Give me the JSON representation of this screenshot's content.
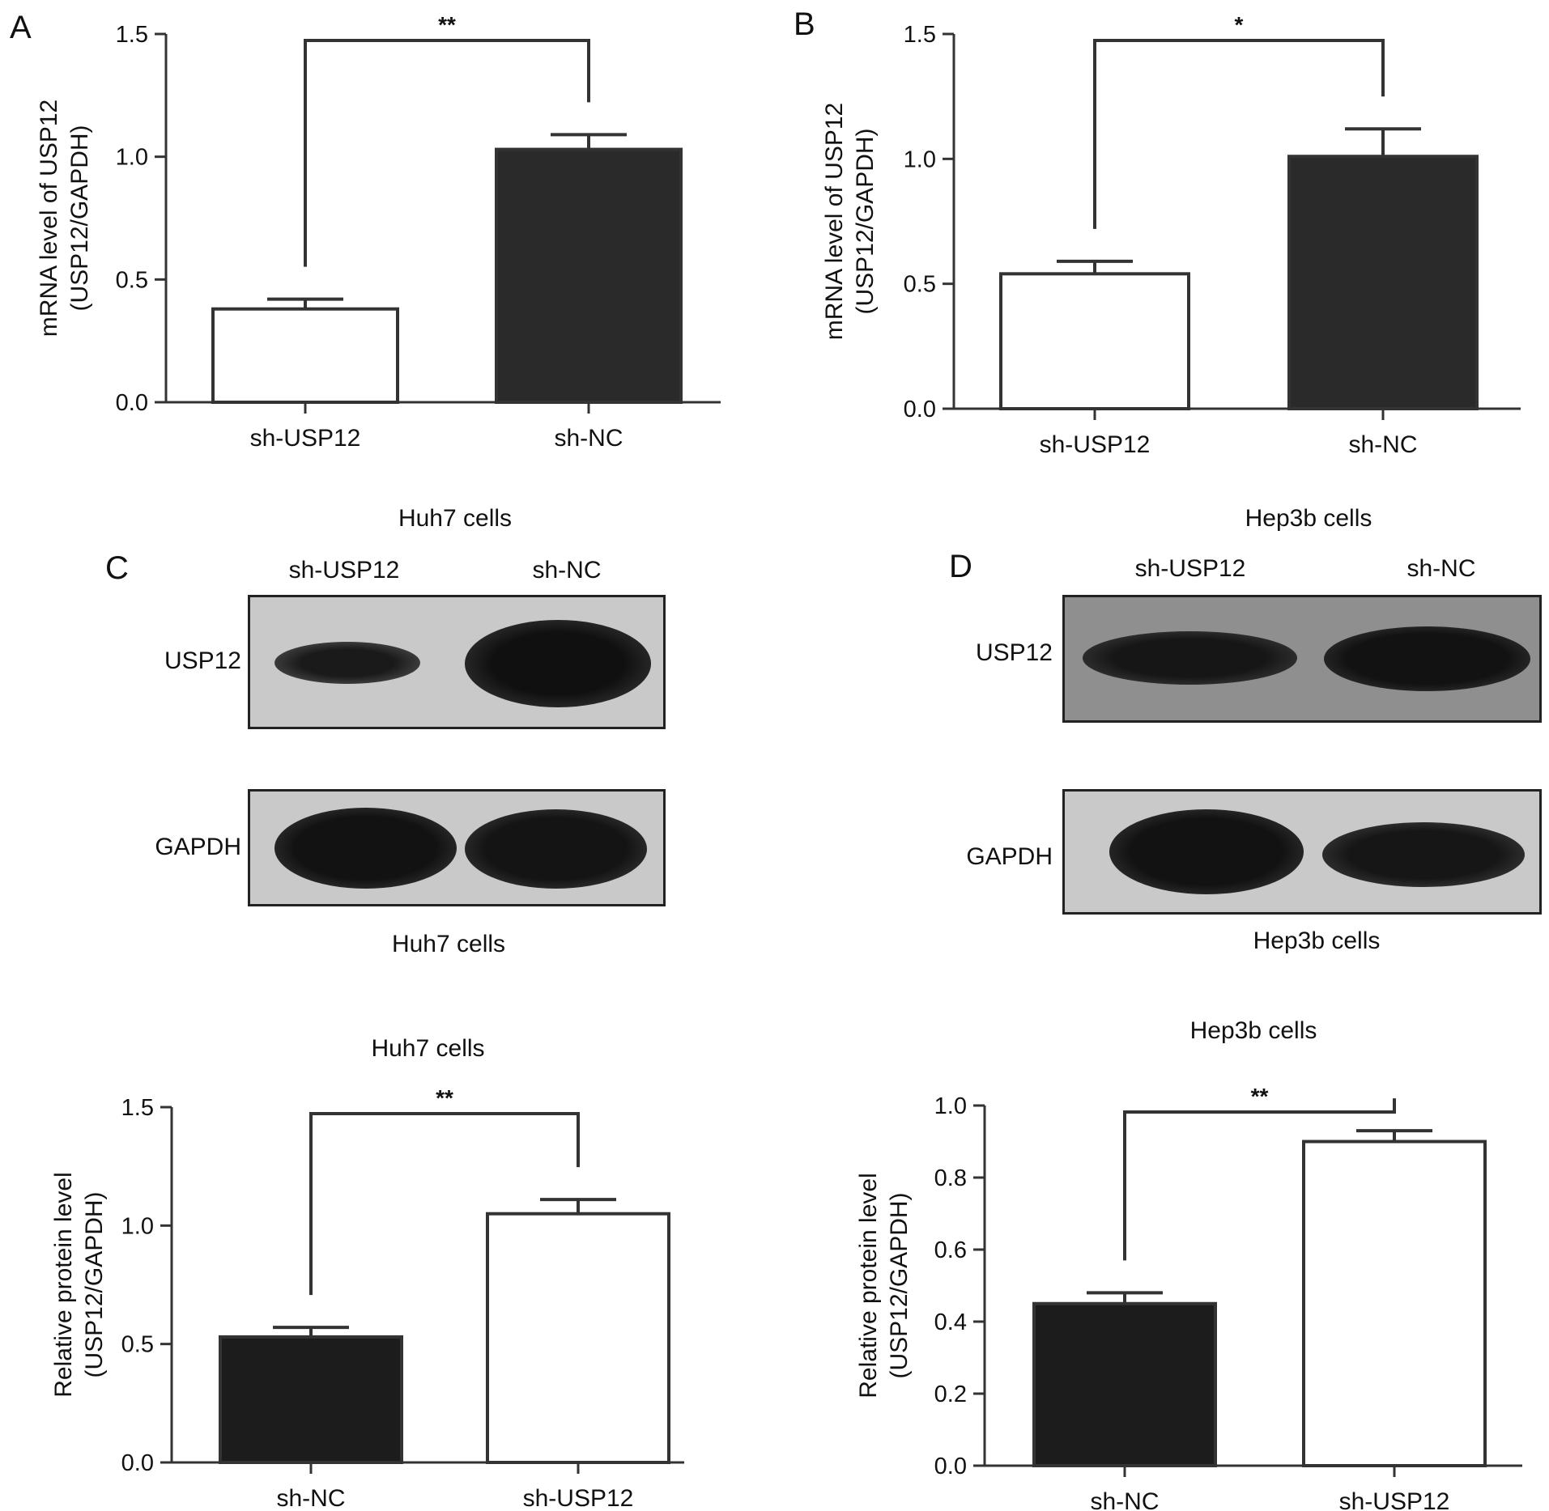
{
  "panels": {
    "a": {
      "letter": "A"
    },
    "b": {
      "letter": "B"
    },
    "c": {
      "letter": "C"
    },
    "d": {
      "letter": "D"
    }
  },
  "blots": {
    "c": {
      "title": "Huh7 cells",
      "lanes": [
        "sh-USP12",
        "sh-NC"
      ],
      "rows": [
        "USP12",
        "GAPDH"
      ],
      "caption": "Huh7 cells"
    },
    "d": {
      "title": "Hep3b cells",
      "lanes": [
        "sh-USP12",
        "sh-NC"
      ],
      "rows": [
        "USP12",
        "GAPDH"
      ],
      "caption": "Hep3b cells"
    }
  },
  "chart_data": [
    {
      "panel": "A",
      "type": "bar",
      "title": "",
      "categories": [
        "sh-USP12",
        "sh-NC"
      ],
      "values": [
        0.38,
        1.03
      ],
      "errors": [
        0.04,
        0.06
      ],
      "bar_colors": [
        "#ffffff",
        "#2a2a2a"
      ],
      "ylabel": [
        "mRNA level of USP12",
        "(USP12/GAPDH)"
      ],
      "ylim": [
        0,
        1.5
      ],
      "yticks": [
        "0.0",
        "0.5",
        "1.0",
        "1.5"
      ],
      "significance": "**"
    },
    {
      "panel": "B",
      "type": "bar",
      "title": "",
      "categories": [
        "sh-USP12",
        "sh-NC"
      ],
      "values": [
        0.54,
        1.01
      ],
      "errors": [
        0.05,
        0.11
      ],
      "bar_colors": [
        "#ffffff",
        "#2a2a2a"
      ],
      "ylabel": [
        "mRNA level of USP12",
        "(USP12/GAPDH)"
      ],
      "ylim": [
        0,
        1.5
      ],
      "yticks": [
        "0.0",
        "0.5",
        "1.0",
        "1.5"
      ],
      "significance": "*"
    },
    {
      "panel": "C",
      "type": "bar",
      "title": "Huh7 cells",
      "categories": [
        "sh-NC",
        "sh-USP12"
      ],
      "values": [
        0.53,
        1.05
      ],
      "errors": [
        0.04,
        0.06
      ],
      "bar_colors": [
        "#1c1c1c",
        "#ffffff"
      ],
      "ylabel": [
        "Relative protein level",
        "(USP12/GAPDH)"
      ],
      "ylim": [
        0,
        1.5
      ],
      "yticks": [
        "0.0",
        "0.5",
        "1.0",
        "1.5"
      ],
      "significance": "**"
    },
    {
      "panel": "D",
      "type": "bar",
      "title": "Hep3b cells",
      "categories": [
        "sh-NC",
        "sh-USP12"
      ],
      "values": [
        0.45,
        0.9
      ],
      "errors": [
        0.03,
        0.03
      ],
      "bar_colors": [
        "#1c1c1c",
        "#ffffff"
      ],
      "ylabel": [
        "Relative protein level",
        "(USP12/GAPDH)"
      ],
      "ylim": [
        0,
        1.0
      ],
      "yticks": [
        "0.0",
        "0.2",
        "0.4",
        "0.6",
        "0.8",
        "1.0"
      ],
      "significance": "**"
    }
  ]
}
